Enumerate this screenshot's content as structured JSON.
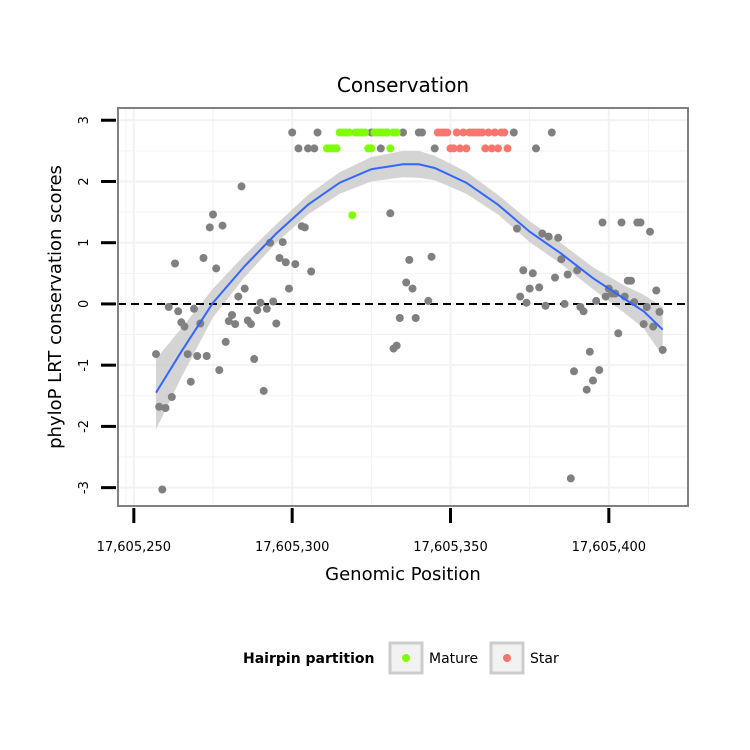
{
  "chart_data": {
    "type": "scatter",
    "title": "Conservation",
    "xlabel": "Genomic Position",
    "ylabel": "phyloP LRT conservation scores",
    "xlim": [
      17605245,
      17605425
    ],
    "ylim": [
      -3.3,
      3.2
    ],
    "x_ticks": [
      17605250,
      17605300,
      17605350,
      17605400
    ],
    "x_tick_labels": [
      "17,605,250",
      "17,605,300",
      "17,605,350",
      "17,605,400"
    ],
    "y_ticks": [
      3,
      2,
      1,
      0,
      -1,
      -2,
      -3
    ],
    "y_tick_labels": [
      "3",
      "2",
      "1",
      "0",
      "-1",
      "-2",
      "-3"
    ],
    "reference_line": {
      "y": 0,
      "style": "dashed"
    },
    "legend": {
      "title": "Hairpin partition",
      "position": "bottom",
      "entries": [
        {
          "label": "Mature",
          "color": "#7fff00"
        },
        {
          "label": "Star",
          "color": "#f8766d"
        }
      ]
    },
    "colors": {
      "other": "#808080",
      "mature": "#7fff00",
      "star": "#f8766d",
      "smooth_line": "#3366ff",
      "ribbon": "#cccccc",
      "panel": "#ffffff",
      "grid": "#f2f2f2",
      "border": "#808080"
    },
    "series": [
      {
        "name": "Other",
        "points": [
          [
            17605257,
            -0.82
          ],
          [
            17605258,
            -1.68
          ],
          [
            17605259,
            -3.03
          ],
          [
            17605260,
            -1.7
          ],
          [
            17605261,
            -0.05
          ],
          [
            17605262,
            -1.52
          ],
          [
            17605263,
            0.66
          ],
          [
            17605264,
            -0.12
          ],
          [
            17605265,
            -0.3
          ],
          [
            17605266,
            -0.37
          ],
          [
            17605267,
            -0.82
          ],
          [
            17605268,
            -1.27
          ],
          [
            17605269,
            -0.08
          ],
          [
            17605270,
            -0.85
          ],
          [
            17605271,
            -0.32
          ],
          [
            17605272,
            0.75
          ],
          [
            17605273,
            -0.85
          ],
          [
            17605274,
            1.25
          ],
          [
            17605275,
            1.46
          ],
          [
            17605276,
            0.58
          ],
          [
            17605277,
            -1.08
          ],
          [
            17605278,
            1.28
          ],
          [
            17605279,
            -0.62
          ],
          [
            17605280,
            -0.28
          ],
          [
            17605281,
            -0.18
          ],
          [
            17605282,
            -0.33
          ],
          [
            17605283,
            0.12
          ],
          [
            17605284,
            1.92
          ],
          [
            17605285,
            0.25
          ],
          [
            17605286,
            -0.27
          ],
          [
            17605287,
            -0.33
          ],
          [
            17605288,
            -0.9
          ],
          [
            17605289,
            -0.1
          ],
          [
            17605290,
            0.02
          ],
          [
            17605291,
            -1.42
          ],
          [
            17605292,
            -0.08
          ],
          [
            17605293,
            1.0
          ],
          [
            17605294,
            0.04
          ],
          [
            17605295,
            -0.32
          ],
          [
            17605296,
            0.75
          ],
          [
            17605297,
            1.01
          ],
          [
            17605298,
            0.68
          ],
          [
            17605299,
            0.25
          ],
          [
            17605300,
            2.8
          ],
          [
            17605301,
            0.65
          ],
          [
            17605302,
            2.54
          ],
          [
            17605303,
            1.27
          ],
          [
            17605304,
            1.25
          ],
          [
            17605305,
            2.54
          ],
          [
            17605306,
            0.53
          ],
          [
            17605307,
            2.54
          ],
          [
            17605308,
            2.8
          ],
          [
            17605325,
            2.8
          ],
          [
            17605328,
            2.54
          ],
          [
            17605330,
            2.8
          ],
          [
            17605331,
            1.48
          ],
          [
            17605332,
            -0.73
          ],
          [
            17605333,
            -0.68
          ],
          [
            17605334,
            -0.23
          ],
          [
            17605335,
            2.8
          ],
          [
            17605336,
            0.35
          ],
          [
            17605337,
            0.72
          ],
          [
            17605338,
            0.25
          ],
          [
            17605339,
            -0.23
          ],
          [
            17605340,
            2.8
          ],
          [
            17605341,
            2.8
          ],
          [
            17605343,
            0.05
          ],
          [
            17605344,
            0.77
          ],
          [
            17605345,
            2.54
          ],
          [
            17605370,
            2.8
          ],
          [
            17605371,
            1.23
          ],
          [
            17605372,
            0.12
          ],
          [
            17605373,
            0.55
          ],
          [
            17605374,
            0.02
          ],
          [
            17605375,
            0.25
          ],
          [
            17605376,
            0.5
          ],
          [
            17605377,
            2.54
          ],
          [
            17605378,
            0.27
          ],
          [
            17605379,
            1.15
          ],
          [
            17605380,
            -0.03
          ],
          [
            17605381,
            1.1
          ],
          [
            17605382,
            2.8
          ],
          [
            17605383,
            0.43
          ],
          [
            17605384,
            1.08
          ],
          [
            17605385,
            0.73
          ],
          [
            17605386,
            0.0
          ],
          [
            17605387,
            0.48
          ],
          [
            17605388,
            -2.85
          ],
          [
            17605389,
            -1.1
          ],
          [
            17605390,
            0.55
          ],
          [
            17605391,
            -0.05
          ],
          [
            17605392,
            -0.12
          ],
          [
            17605393,
            -1.4
          ],
          [
            17605394,
            -0.78
          ],
          [
            17605395,
            -1.25
          ],
          [
            17605396,
            0.05
          ],
          [
            17605397,
            -1.08
          ],
          [
            17605398,
            1.33
          ],
          [
            17605399,
            0.12
          ],
          [
            17605400,
            0.25
          ],
          [
            17605401,
            0.17
          ],
          [
            17605402,
            0.17
          ],
          [
            17605403,
            -0.48
          ],
          [
            17605404,
            1.33
          ],
          [
            17605405,
            0.12
          ],
          [
            17605406,
            0.38
          ],
          [
            17605407,
            0.38
          ],
          [
            17605408,
            0.03
          ],
          [
            17605409,
            1.33
          ],
          [
            17605410,
            1.33
          ],
          [
            17605411,
            -0.33
          ],
          [
            17605412,
            -0.05
          ],
          [
            17605413,
            1.18
          ],
          [
            17605414,
            -0.37
          ],
          [
            17605415,
            0.22
          ],
          [
            17605416,
            -0.13
          ],
          [
            17605417,
            -0.75
          ]
        ]
      },
      {
        "name": "Mature",
        "points": [
          [
            17605311,
            2.54
          ],
          [
            17605312,
            2.54
          ],
          [
            17605313,
            2.54
          ],
          [
            17605314,
            2.54
          ],
          [
            17605315,
            2.8
          ],
          [
            17605316,
            2.8
          ],
          [
            17605317,
            2.8
          ],
          [
            17605318,
            2.8
          ],
          [
            17605319,
            1.45
          ],
          [
            17605320,
            2.8
          ],
          [
            17605321,
            2.8
          ],
          [
            17605322,
            2.8
          ],
          [
            17605323,
            2.8
          ],
          [
            17605324,
            2.54
          ],
          [
            17605325,
            2.54
          ],
          [
            17605326,
            2.8
          ],
          [
            17605327,
            2.8
          ],
          [
            17605328,
            2.8
          ],
          [
            17605329,
            2.8
          ],
          [
            17605330,
            2.8
          ],
          [
            17605331,
            2.54
          ],
          [
            17605332,
            2.8
          ],
          [
            17605333,
            2.8
          ]
        ]
      },
      {
        "name": "Star",
        "points": [
          [
            17605346,
            2.8
          ],
          [
            17605347,
            2.8
          ],
          [
            17605348,
            2.8
          ],
          [
            17605349,
            2.8
          ],
          [
            17605350,
            2.54
          ],
          [
            17605351,
            2.54
          ],
          [
            17605352,
            2.8
          ],
          [
            17605353,
            2.54
          ],
          [
            17605354,
            2.8
          ],
          [
            17605355,
            2.54
          ],
          [
            17605356,
            2.8
          ],
          [
            17605357,
            2.8
          ],
          [
            17605358,
            2.8
          ],
          [
            17605359,
            2.8
          ],
          [
            17605360,
            2.8
          ],
          [
            17605361,
            2.54
          ],
          [
            17605362,
            2.8
          ],
          [
            17605363,
            2.54
          ],
          [
            17605364,
            2.8
          ],
          [
            17605365,
            2.54
          ],
          [
            17605366,
            2.8
          ],
          [
            17605367,
            2.8
          ],
          [
            17605368,
            2.54
          ]
        ]
      }
    ],
    "smooth": {
      "fit": [
        [
          17605257,
          -1.45
        ],
        [
          17605265,
          -0.78
        ],
        [
          17605275,
          0.02
        ],
        [
          17605285,
          0.62
        ],
        [
          17605295,
          1.15
        ],
        [
          17605305,
          1.62
        ],
        [
          17605315,
          1.98
        ],
        [
          17605325,
          2.2
        ],
        [
          17605335,
          2.28
        ],
        [
          17605340,
          2.28
        ],
        [
          17605345,
          2.22
        ],
        [
          17605355,
          1.98
        ],
        [
          17605365,
          1.62
        ],
        [
          17605375,
          1.18
        ],
        [
          17605385,
          0.82
        ],
        [
          17605395,
          0.42
        ],
        [
          17605405,
          0.08
        ],
        [
          17605411,
          -0.12
        ],
        [
          17605417,
          -0.42
        ]
      ],
      "upper": [
        [
          17605257,
          -0.9
        ],
        [
          17605265,
          -0.4
        ],
        [
          17605275,
          0.25
        ],
        [
          17605285,
          0.8
        ],
        [
          17605295,
          1.3
        ],
        [
          17605305,
          1.78
        ],
        [
          17605315,
          2.15
        ],
        [
          17605325,
          2.4
        ],
        [
          17605335,
          2.5
        ],
        [
          17605340,
          2.5
        ],
        [
          17605345,
          2.42
        ],
        [
          17605355,
          2.16
        ],
        [
          17605365,
          1.78
        ],
        [
          17605375,
          1.35
        ],
        [
          17605385,
          0.99
        ],
        [
          17605395,
          0.6
        ],
        [
          17605405,
          0.3
        ],
        [
          17605411,
          0.15
        ],
        [
          17605417,
          -0.05
        ]
      ],
      "lower": [
        [
          17605257,
          -2.05
        ],
        [
          17605265,
          -1.2
        ],
        [
          17605275,
          -0.22
        ],
        [
          17605285,
          0.44
        ],
        [
          17605295,
          1.0
        ],
        [
          17605305,
          1.46
        ],
        [
          17605315,
          1.8
        ],
        [
          17605325,
          2.0
        ],
        [
          17605335,
          2.07
        ],
        [
          17605340,
          2.06
        ],
        [
          17605345,
          2.02
        ],
        [
          17605355,
          1.8
        ],
        [
          17605365,
          1.46
        ],
        [
          17605375,
          1.01
        ],
        [
          17605385,
          0.65
        ],
        [
          17605395,
          0.24
        ],
        [
          17605405,
          -0.15
        ],
        [
          17605411,
          -0.4
        ],
        [
          17605417,
          -0.85
        ]
      ]
    }
  }
}
